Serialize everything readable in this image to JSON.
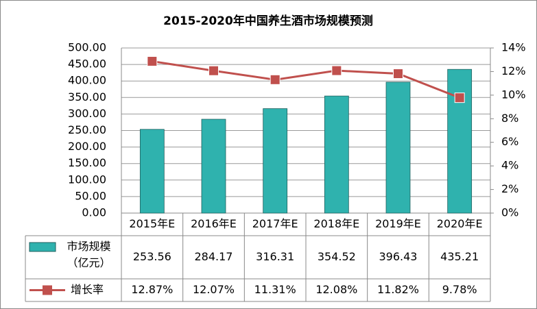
{
  "chart_data": {
    "type": "bar",
    "title": "2015-2020年中国养生酒市场规模预测",
    "categories": [
      "2015年E",
      "2016年E",
      "2017年E",
      "2018年E",
      "2019年E",
      "2020年E"
    ],
    "series": [
      {
        "name": "市场规模（亿元）",
        "color": "#2fb2ae",
        "values": [
          253.56,
          284.17,
          316.31,
          354.52,
          396.43,
          435.21
        ]
      },
      {
        "name": "增长率",
        "type": "line",
        "axis": "y2",
        "color": "#c0504d",
        "values": [
          12.87,
          12.07,
          11.31,
          12.08,
          11.82,
          9.78
        ],
        "value_labels": [
          "12.87%",
          "12.07%",
          "11.31%",
          "12.08%",
          "11.82%",
          "9.78%"
        ]
      }
    ],
    "ylim": [
      0,
      500
    ],
    "yticks": [
      {
        "value": 0,
        "label": "0.00"
      },
      {
        "value": 50,
        "label": "50.00"
      },
      {
        "value": 100,
        "label": "100.00"
      },
      {
        "value": 150,
        "label": "150.00"
      },
      {
        "value": 200,
        "label": "200.00"
      },
      {
        "value": 250,
        "label": "250.00"
      },
      {
        "value": 300,
        "label": "300.00"
      },
      {
        "value": 350,
        "label": "350.00"
      },
      {
        "value": 400,
        "label": "400.00"
      },
      {
        "value": 450,
        "label": "450.00"
      },
      {
        "value": 500,
        "label": "500.00"
      }
    ],
    "y2lim": [
      0,
      14
    ],
    "y2ticks": [
      {
        "value": 0,
        "label": "0%"
      },
      {
        "value": 2,
        "label": "2%"
      },
      {
        "value": 4,
        "label": "4%"
      },
      {
        "value": 6,
        "label": "6%"
      },
      {
        "value": 8,
        "label": "8%"
      },
      {
        "value": 10,
        "label": "10%"
      },
      {
        "value": 12,
        "label": "12%"
      },
      {
        "value": 14,
        "label": "14%"
      }
    ],
    "grid": true,
    "data_table": true
  }
}
